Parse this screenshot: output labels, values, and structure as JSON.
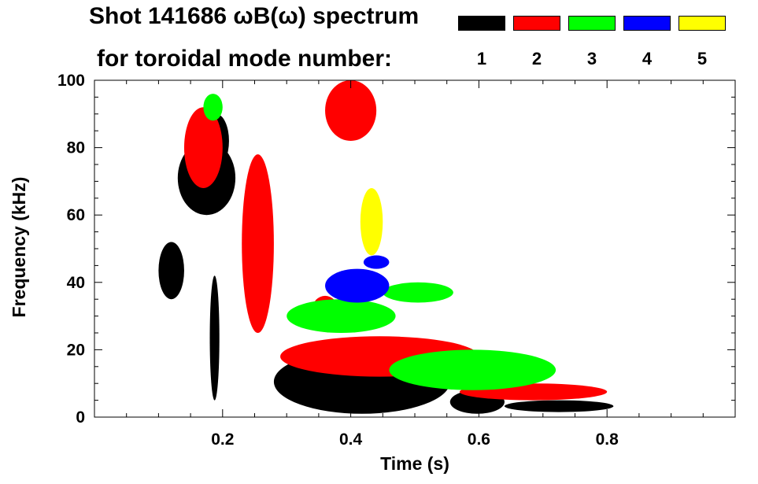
{
  "chart_data": {
    "type": "heatmap",
    "title_line1": "Shot 141686 ωB(ω) spectrum",
    "title_line2": "for toroidal mode number:",
    "xlabel": "Time (s)",
    "ylabel": "Frequency (kHz)",
    "xlim": [
      0.0,
      1.0
    ],
    "ylim": [
      0,
      100
    ],
    "x_tick_labels": [
      "0.2",
      "0.4",
      "0.6",
      "0.8"
    ],
    "x_tick_values": [
      0.2,
      0.4,
      0.6,
      0.8
    ],
    "y_tick_labels": [
      "0",
      "20",
      "40",
      "60",
      "80",
      "100"
    ],
    "y_tick_values": [
      0,
      20,
      40,
      60,
      80,
      100
    ],
    "legend": [
      {
        "mode": "1",
        "color": "#000000"
      },
      {
        "mode": "2",
        "color": "#ff0000"
      },
      {
        "mode": "3",
        "color": "#00ff00"
      },
      {
        "mode": "4",
        "color": "#0000ff"
      },
      {
        "mode": "5",
        "color": "#ffff00"
      }
    ],
    "series": [
      {
        "name": "n=1",
        "color": "#000000",
        "blobs": [
          {
            "t": [
              0.28,
              0.555
            ],
            "f": [
              1,
              20
            ]
          },
          {
            "t": [
              0.555,
              0.64
            ],
            "f": [
              1,
              8
            ]
          },
          {
            "t": [
              0.64,
              0.81
            ],
            "f": [
              1.5,
              5
            ]
          },
          {
            "t": [
              0.1,
              0.14
            ],
            "f": [
              35,
              52
            ]
          },
          {
            "t": [
              0.13,
              0.22
            ],
            "f": [
              60,
              82
            ]
          },
          {
            "t": [
              0.18,
              0.195
            ],
            "f": [
              5,
              42
            ]
          },
          {
            "t": [
              0.17,
              0.21
            ],
            "f": [
              74,
              90
            ]
          }
        ]
      },
      {
        "name": "n=2",
        "color": "#ff0000",
        "blobs": [
          {
            "t": [
              0.29,
              0.6
            ],
            "f": [
              12,
              24
            ]
          },
          {
            "t": [
              0.57,
              0.8
            ],
            "f": [
              5,
              10
            ]
          },
          {
            "t": [
              0.23,
              0.28
            ],
            "f": [
              25,
              78
            ]
          },
          {
            "t": [
              0.36,
              0.44
            ],
            "f": [
              82,
              100
            ]
          },
          {
            "t": [
              0.14,
              0.2
            ],
            "f": [
              68,
              92
            ]
          },
          {
            "t": [
              0.34,
              0.38
            ],
            "f": [
              28,
              36
            ]
          }
        ]
      },
      {
        "name": "n=3",
        "color": "#00ff00",
        "blobs": [
          {
            "t": [
              0.3,
              0.47
            ],
            "f": [
              25,
              35
            ]
          },
          {
            "t": [
              0.45,
              0.56
            ],
            "f": [
              34,
              40
            ]
          },
          {
            "t": [
              0.46,
              0.72
            ],
            "f": [
              8,
              20
            ]
          },
          {
            "t": [
              0.17,
              0.2
            ],
            "f": [
              88,
              96
            ]
          }
        ]
      },
      {
        "name": "n=4",
        "color": "#0000ff",
        "blobs": [
          {
            "t": [
              0.36,
              0.46
            ],
            "f": [
              34,
              44
            ]
          },
          {
            "t": [
              0.42,
              0.46
            ],
            "f": [
              44,
              48
            ]
          }
        ]
      },
      {
        "name": "n=5",
        "color": "#ffff00",
        "blobs": [
          {
            "t": [
              0.415,
              0.45
            ],
            "f": [
              48,
              68
            ]
          }
        ]
      }
    ]
  }
}
